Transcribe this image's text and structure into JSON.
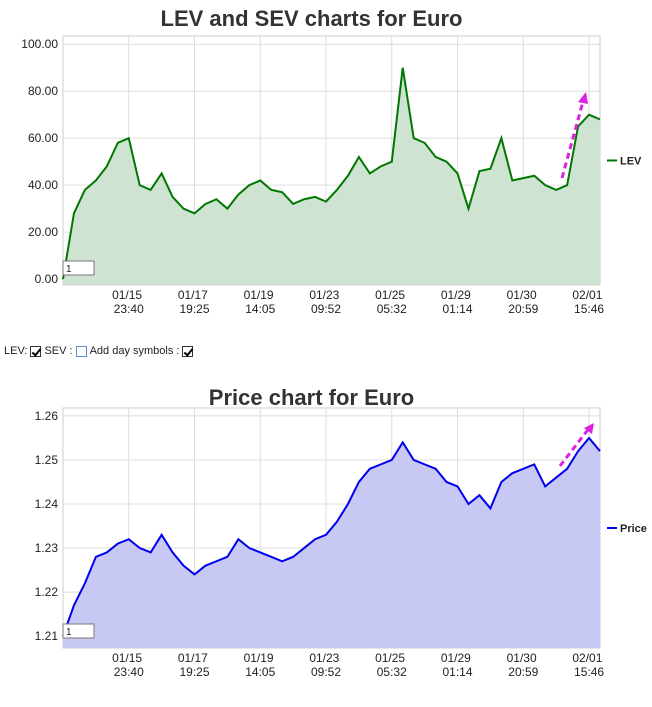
{
  "chart_data": [
    {
      "type": "line",
      "title": "LEV and SEV charts for Euro",
      "categories": [
        null,
        null,
        null,
        null,
        null,
        null,
        "01/15 23:40",
        null,
        null,
        null,
        null,
        null,
        "01/17 19:25",
        null,
        null,
        null,
        null,
        null,
        "01/19 14:05",
        null,
        null,
        null,
        null,
        null,
        "01/23 09:52",
        null,
        null,
        null,
        null,
        null,
        "01/25 05:32",
        null,
        null,
        null,
        null,
        null,
        "01/29 01:14",
        null,
        null,
        null,
        null,
        null,
        "01/30 20:59",
        null,
        null,
        null,
        null,
        null,
        "02/01 15:46",
        null
      ],
      "series": [
        {
          "name": "LEV",
          "color": "#007700",
          "fill": "#cfe3d3",
          "values": [
            0,
            28,
            38,
            42,
            48,
            58,
            60,
            40,
            38,
            45,
            35,
            30,
            28,
            32,
            34,
            30,
            36,
            40,
            42,
            38,
            37,
            32,
            34,
            35,
            33,
            38,
            44,
            52,
            45,
            48,
            50,
            90,
            60,
            58,
            52,
            50,
            45,
            30,
            46,
            47,
            60,
            42,
            43,
            44,
            40,
            38,
            40,
            65,
            70,
            68
          ]
        }
      ],
      "ylim": [
        -2.5,
        103.5
      ],
      "yticks": [
        {
          "value": 0,
          "label": "0.00"
        },
        {
          "value": 20,
          "label": "20.00"
        },
        {
          "value": 40,
          "label": "40.00"
        },
        {
          "value": 60,
          "label": "60.00"
        },
        {
          "value": 80,
          "label": "80.00"
        },
        {
          "value": 100,
          "label": "100.00"
        }
      ],
      "grid": true,
      "legend": "right",
      "box_value": "1"
    },
    {
      "type": "line",
      "title": "Price chart for Euro",
      "categories": [
        null,
        null,
        null,
        null,
        null,
        null,
        "01/15 23:40",
        null,
        null,
        null,
        null,
        null,
        "01/17 19:25",
        null,
        null,
        null,
        null,
        null,
        "01/19 14:05",
        null,
        null,
        null,
        null,
        null,
        "01/23 09:52",
        null,
        null,
        null,
        null,
        null,
        "01/25 05:32",
        null,
        null,
        null,
        null,
        null,
        "01/29 01:14",
        null,
        null,
        null,
        null,
        null,
        "01/30 20:59",
        null,
        null,
        null,
        null,
        null,
        "02/01 15:46",
        null
      ],
      "series": [
        {
          "name": "Price",
          "color": "#0000ee",
          "fill": "#c8c8f4",
          "values": [
            1.21,
            1.217,
            1.222,
            1.228,
            1.229,
            1.231,
            1.232,
            1.23,
            1.229,
            1.233,
            1.229,
            1.226,
            1.224,
            1.226,
            1.227,
            1.228,
            1.232,
            1.23,
            1.229,
            1.228,
            1.227,
            1.228,
            1.23,
            1.232,
            1.233,
            1.236,
            1.24,
            1.245,
            1.248,
            1.249,
            1.25,
            1.254,
            1.25,
            1.249,
            1.248,
            1.245,
            1.244,
            1.24,
            1.242,
            1.239,
            1.245,
            1.247,
            1.248,
            1.249,
            1.244,
            1.246,
            1.248,
            1.252,
            1.255,
            1.252
          ]
        }
      ],
      "ylim": [
        1.2073,
        1.2618
      ],
      "yticks": [
        1.21,
        1.22,
        1.23,
        1.24,
        1.25,
        1.26
      ],
      "grid": true,
      "legend": "right",
      "box_value": "1"
    }
  ],
  "controls": {
    "lev": "LEV:",
    "sev": "SEV :",
    "day": "Add day symbols :"
  }
}
